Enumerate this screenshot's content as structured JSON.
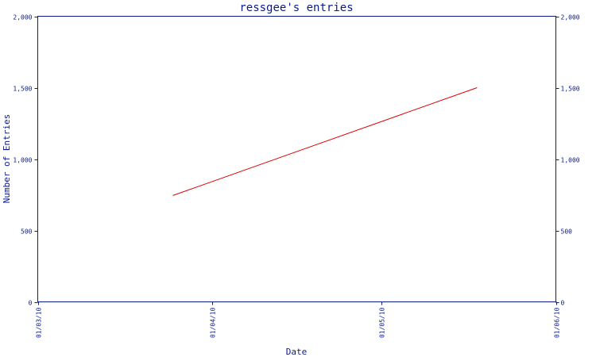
{
  "chart_data": {
    "type": "line",
    "title": "ressgee's entries",
    "xlabel": "Date",
    "ylabel": "Number of Entries",
    "x_ticks": [
      "2010-03-01",
      "2010-04-01",
      "2010-05-01",
      "2010-06-01"
    ],
    "x_tick_labels": [
      "01/03/10",
      "01/04/10",
      "01/05/10",
      "01/06/10"
    ],
    "xlim": [
      "2010-03-01",
      "2010-06-01"
    ],
    "y_ticks": [
      0,
      500,
      1000,
      1500,
      2000
    ],
    "y_tick_labels": [
      "0",
      "500",
      "1,000",
      "1,500",
      "2,000"
    ],
    "ylim": [
      0,
      2000
    ],
    "right_axis": true,
    "grid": false,
    "series": [
      {
        "color": "#e00000",
        "x": [
          "2010-03-25",
          "2010-05-18"
        ],
        "y": [
          745,
          1500
        ]
      }
    ]
  },
  "colors": {
    "axis": "#0b1a8c",
    "line": "#e00000"
  }
}
